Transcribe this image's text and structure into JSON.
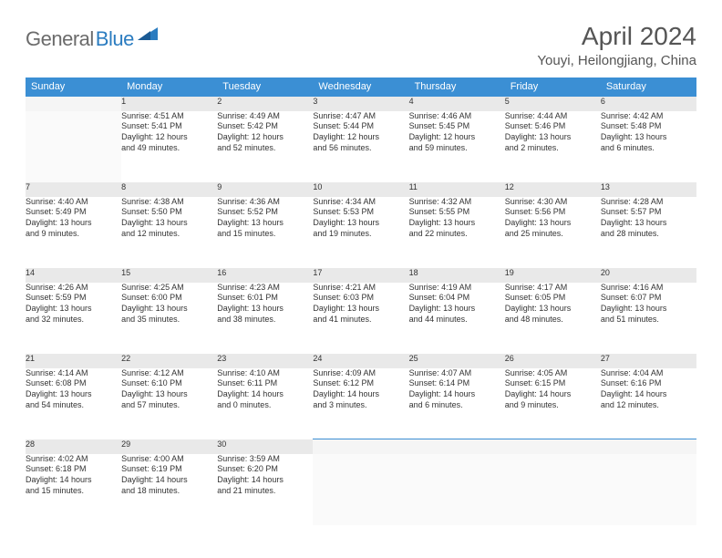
{
  "logo": {
    "part1": "General",
    "part2": "Blue"
  },
  "title": "April 2024",
  "location": "Youyi, Heilongjiang, China",
  "colors": {
    "header_bg": "#3b8fd4",
    "header_text": "#ffffff",
    "daynum_bg": "#e9e9e9",
    "border_top": "#3b8fd4",
    "text": "#333333",
    "title": "#555555"
  },
  "day_headers": [
    "Sunday",
    "Monday",
    "Tuesday",
    "Wednesday",
    "Thursday",
    "Friday",
    "Saturday"
  ],
  "weeks": [
    {
      "nums": [
        "",
        "1",
        "2",
        "3",
        "4",
        "5",
        "6"
      ],
      "cells": [
        null,
        {
          "sunrise": "Sunrise: 4:51 AM",
          "sunset": "Sunset: 5:41 PM",
          "day1": "Daylight: 12 hours",
          "day2": "and 49 minutes."
        },
        {
          "sunrise": "Sunrise: 4:49 AM",
          "sunset": "Sunset: 5:42 PM",
          "day1": "Daylight: 12 hours",
          "day2": "and 52 minutes."
        },
        {
          "sunrise": "Sunrise: 4:47 AM",
          "sunset": "Sunset: 5:44 PM",
          "day1": "Daylight: 12 hours",
          "day2": "and 56 minutes."
        },
        {
          "sunrise": "Sunrise: 4:46 AM",
          "sunset": "Sunset: 5:45 PM",
          "day1": "Daylight: 12 hours",
          "day2": "and 59 minutes."
        },
        {
          "sunrise": "Sunrise: 4:44 AM",
          "sunset": "Sunset: 5:46 PM",
          "day1": "Daylight: 13 hours",
          "day2": "and 2 minutes."
        },
        {
          "sunrise": "Sunrise: 4:42 AM",
          "sunset": "Sunset: 5:48 PM",
          "day1": "Daylight: 13 hours",
          "day2": "and 6 minutes."
        }
      ]
    },
    {
      "nums": [
        "7",
        "8",
        "9",
        "10",
        "11",
        "12",
        "13"
      ],
      "cells": [
        {
          "sunrise": "Sunrise: 4:40 AM",
          "sunset": "Sunset: 5:49 PM",
          "day1": "Daylight: 13 hours",
          "day2": "and 9 minutes."
        },
        {
          "sunrise": "Sunrise: 4:38 AM",
          "sunset": "Sunset: 5:50 PM",
          "day1": "Daylight: 13 hours",
          "day2": "and 12 minutes."
        },
        {
          "sunrise": "Sunrise: 4:36 AM",
          "sunset": "Sunset: 5:52 PM",
          "day1": "Daylight: 13 hours",
          "day2": "and 15 minutes."
        },
        {
          "sunrise": "Sunrise: 4:34 AM",
          "sunset": "Sunset: 5:53 PM",
          "day1": "Daylight: 13 hours",
          "day2": "and 19 minutes."
        },
        {
          "sunrise": "Sunrise: 4:32 AM",
          "sunset": "Sunset: 5:55 PM",
          "day1": "Daylight: 13 hours",
          "day2": "and 22 minutes."
        },
        {
          "sunrise": "Sunrise: 4:30 AM",
          "sunset": "Sunset: 5:56 PM",
          "day1": "Daylight: 13 hours",
          "day2": "and 25 minutes."
        },
        {
          "sunrise": "Sunrise: 4:28 AM",
          "sunset": "Sunset: 5:57 PM",
          "day1": "Daylight: 13 hours",
          "day2": "and 28 minutes."
        }
      ]
    },
    {
      "nums": [
        "14",
        "15",
        "16",
        "17",
        "18",
        "19",
        "20"
      ],
      "cells": [
        {
          "sunrise": "Sunrise: 4:26 AM",
          "sunset": "Sunset: 5:59 PM",
          "day1": "Daylight: 13 hours",
          "day2": "and 32 minutes."
        },
        {
          "sunrise": "Sunrise: 4:25 AM",
          "sunset": "Sunset: 6:00 PM",
          "day1": "Daylight: 13 hours",
          "day2": "and 35 minutes."
        },
        {
          "sunrise": "Sunrise: 4:23 AM",
          "sunset": "Sunset: 6:01 PM",
          "day1": "Daylight: 13 hours",
          "day2": "and 38 minutes."
        },
        {
          "sunrise": "Sunrise: 4:21 AM",
          "sunset": "Sunset: 6:03 PM",
          "day1": "Daylight: 13 hours",
          "day2": "and 41 minutes."
        },
        {
          "sunrise": "Sunrise: 4:19 AM",
          "sunset": "Sunset: 6:04 PM",
          "day1": "Daylight: 13 hours",
          "day2": "and 44 minutes."
        },
        {
          "sunrise": "Sunrise: 4:17 AM",
          "sunset": "Sunset: 6:05 PM",
          "day1": "Daylight: 13 hours",
          "day2": "and 48 minutes."
        },
        {
          "sunrise": "Sunrise: 4:16 AM",
          "sunset": "Sunset: 6:07 PM",
          "day1": "Daylight: 13 hours",
          "day2": "and 51 minutes."
        }
      ]
    },
    {
      "nums": [
        "21",
        "22",
        "23",
        "24",
        "25",
        "26",
        "27"
      ],
      "cells": [
        {
          "sunrise": "Sunrise: 4:14 AM",
          "sunset": "Sunset: 6:08 PM",
          "day1": "Daylight: 13 hours",
          "day2": "and 54 minutes."
        },
        {
          "sunrise": "Sunrise: 4:12 AM",
          "sunset": "Sunset: 6:10 PM",
          "day1": "Daylight: 13 hours",
          "day2": "and 57 minutes."
        },
        {
          "sunrise": "Sunrise: 4:10 AM",
          "sunset": "Sunset: 6:11 PM",
          "day1": "Daylight: 14 hours",
          "day2": "and 0 minutes."
        },
        {
          "sunrise": "Sunrise: 4:09 AM",
          "sunset": "Sunset: 6:12 PM",
          "day1": "Daylight: 14 hours",
          "day2": "and 3 minutes."
        },
        {
          "sunrise": "Sunrise: 4:07 AM",
          "sunset": "Sunset: 6:14 PM",
          "day1": "Daylight: 14 hours",
          "day2": "and 6 minutes."
        },
        {
          "sunrise": "Sunrise: 4:05 AM",
          "sunset": "Sunset: 6:15 PM",
          "day1": "Daylight: 14 hours",
          "day2": "and 9 minutes."
        },
        {
          "sunrise": "Sunrise: 4:04 AM",
          "sunset": "Sunset: 6:16 PM",
          "day1": "Daylight: 14 hours",
          "day2": "and 12 minutes."
        }
      ]
    },
    {
      "nums": [
        "28",
        "29",
        "30",
        "",
        "",
        "",
        ""
      ],
      "cells": [
        {
          "sunrise": "Sunrise: 4:02 AM",
          "sunset": "Sunset: 6:18 PM",
          "day1": "Daylight: 14 hours",
          "day2": "and 15 minutes."
        },
        {
          "sunrise": "Sunrise: 4:00 AM",
          "sunset": "Sunset: 6:19 PM",
          "day1": "Daylight: 14 hours",
          "day2": "and 18 minutes."
        },
        {
          "sunrise": "Sunrise: 3:59 AM",
          "sunset": "Sunset: 6:20 PM",
          "day1": "Daylight: 14 hours",
          "day2": "and 21 minutes."
        },
        null,
        null,
        null,
        null
      ]
    }
  ]
}
